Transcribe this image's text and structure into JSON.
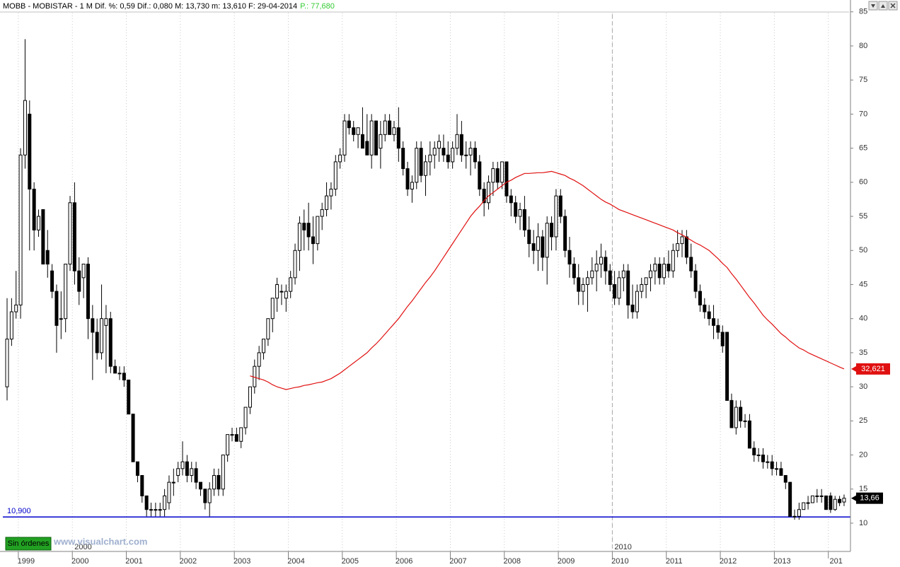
{
  "chart_data": {
    "type": "candlestick",
    "title": "MOBB - MOBISTAR - 1 M  Dif. %: 0,59  Dif.: 0,080  M: 13,730  m: 13,610  F: 29-04-2014",
    "subtitle": "P.: 77,680",
    "watermark": "www.visualchart.com",
    "button": "Sin órdenes",
    "categories": [
      null,
      null,
      null,
      "1999",
      null,
      null,
      null,
      null,
      null,
      null,
      null,
      null,
      null,
      null,
      null,
      "2000",
      null,
      null,
      null,
      null,
      null,
      null,
      null,
      null,
      null,
      null,
      null,
      "2001",
      null,
      null,
      null,
      null,
      null,
      null,
      null,
      null,
      null,
      null,
      null,
      "2002",
      null,
      null,
      null,
      null,
      null,
      null,
      null,
      null,
      null,
      null,
      null,
      "2003",
      null,
      null,
      null,
      null,
      null,
      null,
      null,
      null,
      null,
      null,
      null,
      "2004",
      null,
      null,
      null,
      null,
      null,
      null,
      null,
      null,
      null,
      null,
      null,
      "2005",
      null,
      null,
      null,
      null,
      null,
      null,
      null,
      null,
      null,
      null,
      null,
      "2006",
      null,
      null,
      null,
      null,
      null,
      null,
      null,
      null,
      null,
      null,
      null,
      "2007",
      null,
      null,
      null,
      null,
      null,
      null,
      null,
      null,
      null,
      null,
      null,
      "2008",
      null,
      null,
      null,
      null,
      null,
      null,
      null,
      null,
      null,
      null,
      null,
      "2009",
      null,
      null,
      null,
      null,
      null,
      null,
      null,
      null,
      null,
      null,
      null,
      "2010",
      null,
      null,
      null,
      null,
      null,
      null,
      null,
      null,
      null,
      null,
      null,
      "2011",
      null,
      null,
      null,
      null,
      null,
      null,
      null,
      null,
      null,
      null,
      null,
      "2012",
      null,
      null,
      null,
      null,
      null,
      null,
      null,
      null,
      null,
      null,
      null,
      "2013",
      null,
      null,
      null,
      null,
      null,
      null,
      null,
      null,
      null,
      null,
      null,
      "201",
      null,
      null,
      null
    ],
    "x_major_labels": [
      "2000",
      "2010"
    ],
    "open": [
      30,
      37,
      41,
      42,
      64,
      70,
      59,
      53,
      56,
      50,
      47,
      44,
      40,
      40,
      48,
      57,
      47,
      46,
      48,
      40,
      38,
      35,
      39,
      40,
      33,
      32,
      32,
      31,
      26,
      19,
      17,
      14,
      12,
      12,
      12,
      12,
      13,
      16,
      17,
      18,
      19,
      17,
      18,
      16,
      15,
      13,
      15,
      17,
      15,
      20,
      23,
      23,
      22,
      24,
      27,
      30,
      33,
      35,
      37,
      40,
      43,
      44,
      43,
      44,
      46,
      50,
      54,
      54,
      52,
      51,
      55,
      56,
      58,
      59,
      63,
      64,
      69,
      68,
      67,
      67,
      66,
      64,
      69,
      65,
      67,
      69,
      67,
      68,
      65,
      62,
      59,
      60,
      65,
      61,
      63,
      64,
      65,
      65,
      64,
      63,
      65,
      67,
      64,
      64,
      65,
      63,
      59,
      57,
      60,
      62,
      60,
      63,
      58,
      57,
      55,
      56,
      53,
      51,
      50,
      52,
      49,
      54,
      52,
      58,
      55,
      50,
      48,
      46,
      44,
      45,
      46,
      47,
      48,
      49,
      47,
      45,
      43,
      46,
      47,
      42,
      41,
      44,
      45,
      46,
      47,
      48,
      46,
      48,
      47,
      50,
      51,
      52,
      49,
      47,
      44,
      42,
      41,
      40,
      39,
      38,
      38,
      28,
      24,
      27,
      25,
      25,
      21,
      20,
      20,
      19,
      19,
      18,
      18,
      17,
      16,
      11,
      11,
      12,
      13,
      13,
      14,
      14,
      14,
      14,
      12,
      13.5,
      13.1
    ],
    "high": [
      43,
      43,
      47,
      65,
      81,
      72,
      60,
      56,
      56,
      53,
      48,
      45,
      44,
      48,
      58,
      60,
      49,
      48,
      49,
      42,
      40,
      45,
      42,
      41,
      34,
      33,
      33,
      31,
      26,
      19,
      17,
      14,
      13,
      13,
      13,
      15,
      17,
      18,
      19,
      22,
      20,
      19,
      19,
      16,
      15,
      16,
      18,
      18,
      20,
      23,
      24,
      24,
      24,
      27,
      30,
      34,
      36,
      37,
      40,
      43,
      46,
      45,
      45,
      47,
      51,
      55,
      56,
      57,
      55,
      55,
      57,
      60,
      60,
      64,
      65,
      70,
      70,
      69,
      68,
      71,
      70,
      70,
      69,
      69,
      70,
      70,
      69,
      71,
      66,
      63,
      61,
      66,
      66,
      64,
      66,
      66,
      67,
      67,
      66,
      66,
      70,
      69,
      66,
      66,
      66,
      64,
      60,
      61,
      63,
      63,
      63,
      63,
      59,
      58,
      57,
      58,
      55,
      53,
      54,
      53,
      55,
      55,
      59,
      59,
      56,
      52,
      49,
      48,
      46,
      47,
      49,
      50,
      51,
      50,
      48,
      47,
      47,
      48,
      48,
      45,
      45,
      46,
      46,
      48,
      49,
      49,
      49,
      50,
      51,
      53,
      53,
      53,
      51,
      48,
      45,
      43,
      42,
      42,
      40,
      39,
      38,
      29,
      28,
      28,
      26,
      26,
      22,
      21,
      21,
      20,
      20,
      19,
      19,
      17,
      16,
      12,
      13,
      13,
      14,
      14,
      15,
      15,
      14,
      14.5,
      14,
      14,
      14.2
    ],
    "low": [
      28,
      36,
      40,
      40,
      62,
      50,
      50,
      52,
      48,
      46,
      43,
      35,
      37,
      38,
      47,
      45,
      42,
      43,
      37,
      31,
      34,
      34,
      32,
      32,
      32,
      31,
      30,
      26,
      19,
      16,
      13,
      11,
      11,
      11,
      11,
      11,
      12,
      14,
      16,
      17,
      16,
      16,
      15,
      14,
      12,
      11,
      14,
      14,
      14,
      19,
      22,
      22,
      21,
      23,
      26,
      29,
      31,
      34,
      36,
      38,
      41,
      42,
      41,
      43,
      45,
      47,
      50,
      50,
      48,
      50,
      53,
      55,
      56,
      58,
      62,
      63,
      67,
      66,
      65,
      65,
      64,
      62,
      64,
      62,
      66,
      67,
      66,
      63,
      61,
      58,
      57,
      59,
      60,
      58,
      61,
      62,
      63,
      63,
      62,
      62,
      64,
      63,
      62,
      61,
      62,
      58,
      55,
      56,
      58,
      59,
      59,
      57,
      55,
      54,
      53,
      52,
      49,
      48,
      47,
      47,
      45,
      50,
      50,
      54,
      49,
      46,
      45,
      42,
      42,
      41,
      45,
      44,
      46,
      45,
      44,
      42,
      42,
      44,
      40,
      40,
      40,
      43,
      43,
      44,
      45,
      45,
      45,
      46,
      46,
      49,
      49,
      48,
      46,
      43,
      41,
      40,
      39,
      37,
      37,
      35,
      28,
      24,
      23,
      24,
      24,
      21,
      19,
      19,
      18,
      18,
      17,
      17,
      17,
      15,
      11,
      10.5,
      10.5,
      12,
      12,
      13,
      13,
      13,
      12,
      11.5,
      11.8,
      12.5,
      12.5
    ],
    "close": [
      37,
      41,
      42,
      64,
      72,
      59,
      53,
      55,
      48,
      48,
      44,
      39,
      40,
      48,
      57,
      47,
      44,
      48,
      40,
      38,
      35,
      40,
      40,
      33,
      32,
      32,
      31,
      26,
      19,
      17,
      14,
      12,
      12,
      12,
      12,
      14,
      16,
      16,
      18,
      19,
      17,
      18,
      16,
      15,
      13,
      15,
      17,
      15,
      20,
      23,
      23,
      22,
      24,
      27,
      30,
      33,
      35,
      37,
      40,
      43,
      45,
      44,
      44,
      46,
      50,
      54,
      53,
      52,
      51,
      55,
      56,
      58,
      59,
      63,
      64,
      69,
      68,
      67,
      68,
      65,
      64,
      69,
      64,
      67,
      69,
      67,
      68,
      65,
      62,
      59,
      60,
      65,
      61,
      63,
      64,
      65,
      66,
      64,
      63,
      65,
      67,
      64,
      64,
      65,
      63,
      59,
      57,
      60,
      62,
      60,
      63,
      58,
      57,
      55,
      56,
      53,
      51,
      50,
      52,
      49,
      54,
      52,
      58,
      55,
      50,
      48,
      46,
      44,
      45,
      46,
      47,
      48,
      49,
      47,
      45,
      43,
      46,
      47,
      42,
      41,
      44,
      45,
      46,
      47,
      48,
      46,
      48,
      47,
      50,
      51,
      52,
      49,
      47,
      44,
      42,
      41,
      40,
      39,
      38,
      36,
      28,
      24,
      27,
      25,
      25,
      21,
      20,
      20,
      19,
      19,
      18,
      18,
      17,
      16,
      11,
      11,
      12,
      13,
      13,
      14,
      14,
      14,
      12,
      12,
      13.5,
      13,
      13.66
    ],
    "last_label": "13,66",
    "up_color": "#ffffff",
    "down_color": "#000000",
    "ma": {
      "color": "#e01010",
      "label": "32,621",
      "values": [
        null,
        null,
        null,
        null,
        null,
        null,
        null,
        null,
        null,
        null,
        null,
        null,
        null,
        null,
        null,
        null,
        null,
        null,
        null,
        null,
        null,
        null,
        null,
        null,
        null,
        null,
        null,
        null,
        null,
        null,
        null,
        null,
        null,
        null,
        null,
        null,
        null,
        null,
        null,
        null,
        null,
        null,
        null,
        null,
        null,
        null,
        null,
        null,
        null,
        null,
        null,
        null,
        null,
        null,
        31.6,
        31.4,
        31.2,
        31.0,
        30.7,
        30.3,
        30.0,
        29.8,
        29.6,
        29.75,
        29.9,
        30.0,
        30.2,
        30.3,
        30.45,
        30.6,
        30.7,
        30.95,
        31.2,
        31.6,
        32.0,
        32.5,
        33.0,
        33.5,
        34.0,
        34.5,
        35.0,
        35.7,
        36.3,
        37.0,
        37.75,
        38.5,
        39.25,
        40.0,
        40.9,
        41.8,
        42.6,
        43.5,
        44.4,
        45.3,
        46.1,
        47.0,
        48.0,
        49.0,
        50.0,
        51.0,
        52.0,
        53.0,
        54.0,
        55.0,
        55.8,
        56.5,
        57.3,
        58.0,
        58.5,
        59.0,
        59.5,
        60.0,
        60.3,
        60.7,
        61.0,
        61.3,
        61.3,
        61.35,
        61.4,
        61.4,
        61.5,
        61.6,
        61.4,
        61.2,
        61.0,
        60.6,
        60.3,
        59.9,
        59.5,
        59.0,
        58.5,
        58.0,
        57.5,
        57.1,
        56.8,
        56.4,
        56.0,
        55.75,
        55.5,
        55.25,
        55.0,
        54.75,
        54.5,
        54.25,
        54.0,
        53.75,
        53.5,
        53.25,
        53.0,
        52.6,
        52.3,
        51.9,
        51.5,
        51.1,
        50.8,
        50.4,
        50.0,
        49.4,
        48.8,
        48.1,
        47.5,
        46.6,
        45.8,
        44.9,
        44.0,
        43.1,
        42.3,
        41.4,
        40.5,
        39.8,
        39.2,
        38.5,
        37.8,
        37.3,
        36.7,
        36.2,
        35.7,
        35.4,
        35.0,
        34.7,
        34.4,
        34.1,
        33.8,
        33.5,
        33.2,
        32.9,
        32.621
      ]
    },
    "hline": {
      "value": 10.9,
      "label": "10,900",
      "color": "#0000cc"
    },
    "ylim": [
      5.85,
      85.7
    ],
    "yticks": [
      10,
      15,
      20,
      25,
      30,
      35,
      40,
      45,
      50,
      55,
      60,
      65,
      70,
      75,
      80,
      85
    ],
    "grid": true
  }
}
